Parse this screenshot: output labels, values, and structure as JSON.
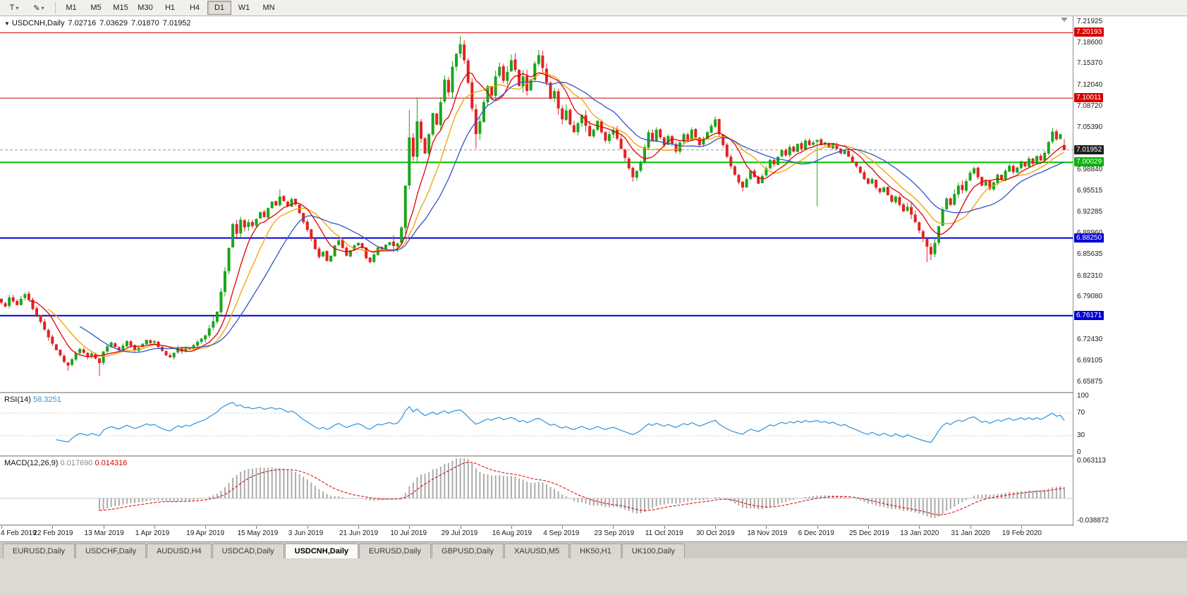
{
  "toolbar": {
    "buttons": [
      {
        "id": "text-tool",
        "label": "T",
        "dropdown": "▾"
      },
      {
        "id": "draw-tool",
        "label": "✎",
        "dropdown": "▾"
      }
    ],
    "timeframes": [
      "M1",
      "M5",
      "M15",
      "M30",
      "H1",
      "H4",
      "D1",
      "W1",
      "MN"
    ],
    "active_timeframe": "D1"
  },
  "chart_header": {
    "collapse_icon": "▼",
    "symbol_label": "USDCNH,Daily",
    "open": "7.02716",
    "high": "7.03629",
    "low": "7.01870",
    "close": "7.01952"
  },
  "price_scale": [
    "7.21925",
    "7.18600",
    "7.15370",
    "7.12040",
    "7.08720",
    "7.05390",
    "7.02060",
    "6.98840",
    "6.95515",
    "6.92285",
    "6.88960",
    "6.85635",
    "6.82310",
    "6.79080",
    "6.75755",
    "6.72430",
    "6.69105",
    "6.65875"
  ],
  "price_tags": [
    {
      "text": "7.20193",
      "price": 7.20193,
      "color": "#D40000"
    },
    {
      "text": "7.10011",
      "price": 7.10011,
      "color": "#D40000"
    },
    {
      "text": "7.01952",
      "price": 7.01952,
      "color": "#1F1F1F"
    },
    {
      "text": "7.00029",
      "price": 7.00029,
      "color": "#00B400"
    },
    {
      "text": "6.88250",
      "price": 6.8825,
      "color": "#0000D4"
    },
    {
      "text": "6.76171",
      "price": 6.76171,
      "color": "#0000D4"
    }
  ],
  "rsi_panel": {
    "name": "RSI(14)",
    "value": "58.3251",
    "scale": [
      {
        "text": "100",
        "v": 100
      },
      {
        "text": "70",
        "v": 70
      },
      {
        "text": "30",
        "v": 30
      },
      {
        "text": "0",
        "v": 0
      }
    ]
  },
  "macd_panel": {
    "name": "MACD(12,26,9)",
    "value_main": "0.017690",
    "value_signal": "0.014316",
    "scale_top": "0.063113",
    "scale_bottom": "-0.038872"
  },
  "date_axis": [
    "4 Feb 2019",
    "22 Feb 2019",
    "13 Mar 2019",
    "1 Apr 2019",
    "19 Apr 2019",
    "15 May 2019",
    "3 Jun 2019",
    "21 Jun 2019",
    "10 Jul 2019",
    "29 Jul 2019",
    "16 Aug 2019",
    "4 Sep 2019",
    "23 Sep 2019",
    "11 Oct 2019",
    "30 Oct 2019",
    "18 Nov 2019",
    "6 Dec 2019",
    "25 Dec 2019",
    "13 Jan 2020",
    "31 Jan 2020",
    "19 Feb 2020"
  ],
  "tabs": {
    "active_index": 4,
    "items": [
      "EURUSD,Daily",
      "USDCHF,Daily",
      "AUDUSD,H4",
      "USDCAD,Daily",
      "USDCNH,Daily",
      "EURUSD,Daily",
      "GBPUSD,Daily",
      "XAUUSD,M5",
      "HK50,H1",
      "UK100,Daily"
    ]
  },
  "chart_data": {
    "type": "candlestick",
    "symbol": "USDCNH",
    "timeframe": "Daily",
    "up_color": "#1CA51C",
    "down_color": "#E22222",
    "price_top": 7.2275,
    "price_bottom": 6.643,
    "first_open": 6.788,
    "tick_every": 13,
    "closes": [
      6.782,
      6.776,
      6.79,
      6.784,
      6.778,
      6.788,
      6.795,
      6.786,
      6.772,
      6.762,
      6.752,
      6.74,
      6.728,
      6.718,
      6.708,
      6.7,
      6.69,
      6.684,
      6.694,
      6.703,
      6.71,
      6.704,
      6.697,
      6.703,
      6.695,
      6.688,
      6.706,
      6.714,
      6.72,
      6.713,
      6.708,
      6.715,
      6.722,
      6.715,
      6.708,
      6.712,
      6.718,
      6.724,
      6.719,
      6.722,
      6.713,
      6.707,
      6.7,
      6.697,
      6.704,
      6.712,
      6.706,
      6.713,
      6.709,
      6.716,
      6.721,
      6.726,
      6.731,
      6.742,
      6.753,
      6.768,
      6.799,
      6.831,
      6.867,
      6.904,
      6.889,
      6.911,
      6.899,
      6.907,
      6.901,
      6.912,
      6.923,
      6.915,
      6.929,
      6.939,
      6.933,
      6.947,
      6.94,
      6.932,
      6.943,
      6.935,
      6.921,
      6.907,
      6.895,
      6.881,
      6.865,
      6.853,
      6.861,
      6.847,
      6.855,
      6.871,
      6.879,
      6.867,
      6.855,
      6.863,
      6.871,
      6.875,
      6.867,
      6.851,
      6.845,
      6.857,
      6.868,
      6.865,
      6.872,
      6.876,
      6.87,
      6.874,
      6.899,
      6.964,
      7.039,
      7.009,
      7.064,
      7.037,
      7.014,
      7.044,
      7.077,
      7.059,
      7.094,
      7.129,
      7.109,
      7.149,
      7.169,
      7.184,
      7.159,
      7.124,
      7.084,
      7.044,
      7.064,
      7.094,
      7.119,
      7.104,
      7.134,
      7.149,
      7.127,
      7.141,
      7.159,
      7.144,
      7.119,
      7.134,
      7.111,
      7.129,
      7.154,
      7.167,
      7.147,
      7.124,
      7.099,
      7.111,
      7.084,
      7.067,
      7.081,
      7.059,
      7.047,
      7.061,
      7.074,
      7.057,
      7.041,
      7.051,
      7.065,
      7.047,
      7.034,
      7.044,
      7.051,
      7.037,
      7.021,
      7.007,
      6.991,
      6.977,
      6.987,
      7.001,
      7.024,
      7.047,
      7.034,
      7.051,
      7.039,
      7.027,
      7.041,
      7.029,
      7.017,
      7.031,
      7.044,
      7.035,
      7.051,
      7.039,
      7.027,
      7.037,
      7.047,
      7.057,
      7.067,
      7.044,
      7.027,
      7.009,
      6.994,
      6.981,
      6.969,
      6.961,
      6.974,
      6.987,
      6.977,
      6.967,
      6.979,
      6.991,
      7.004,
      6.997,
      7.009,
      7.019,
      7.011,
      7.024,
      7.017,
      7.029,
      7.021,
      7.034,
      7.027,
      7.031,
      7.035,
      7.027,
      7.031,
      7.023,
      7.029,
      7.021,
      7.014,
      7.019,
      7.009,
      7.001,
      6.994,
      6.984,
      6.974,
      6.967,
      6.974,
      6.961,
      6.954,
      6.961,
      6.949,
      6.939,
      6.947,
      6.934,
      6.924,
      6.931,
      6.919,
      6.907,
      6.894,
      6.881,
      6.869,
      6.857,
      6.875,
      6.901,
      6.927,
      6.944,
      6.934,
      6.951,
      6.964,
      6.957,
      6.971,
      6.984,
      6.991,
      6.977,
      6.964,
      6.971,
      6.959,
      6.969,
      6.981,
      6.974,
      6.987,
      6.995,
      6.985,
      6.992,
      7.002,
      6.994,
      7.006,
      6.998,
      7.01,
      7.003,
      7.015,
      7.032,
      7.048,
      7.036,
      7.044,
      7.0195
    ],
    "overrides": {
      "17": {
        "l": 6.676
      },
      "25": {
        "l": 6.668
      },
      "71": {
        "h": 6.958
      },
      "104": {
        "h": 7.082
      },
      "106": {
        "h": 7.1
      },
      "117": {
        "h": 7.1965
      },
      "121": {
        "l": 7.022
      },
      "130": {
        "h": 7.168
      },
      "137": {
        "h": 7.175
      },
      "161": {
        "l": 6.97
      },
      "182": {
        "h": 7.072
      },
      "189": {
        "l": 6.955
      },
      "208": {
        "l": 6.932
      },
      "236": {
        "l": 6.845
      },
      "237": {
        "l": 6.848
      },
      "268": {
        "h": 7.054
      },
      "271": {
        "o": 7.02716,
        "h": 7.03629,
        "l": 7.0187,
        "c": 7.01952
      }
    },
    "volatility_zones": [
      {
        "from": 0,
        "to": 12,
        "amp": 0.005
      },
      {
        "from": 52,
        "to": 64,
        "amp": 0.008
      },
      {
        "from": 84,
        "to": 101,
        "amp": 0.0026
      },
      {
        "from": 100,
        "to": 150,
        "amp": 0.01
      },
      {
        "from": 155,
        "to": 168,
        "amp": 0.006
      },
      {
        "from": 230,
        "to": 245,
        "amp": 0.0075
      }
    ],
    "moving_averages": [
      {
        "period": 13,
        "color": "#F0A000"
      },
      {
        "period": 8,
        "color": "#E00000"
      },
      {
        "period": 21,
        "color": "#3353C8"
      }
    ],
    "levels": [
      {
        "price": 7.20193,
        "color": "#D40000",
        "width": 1
      },
      {
        "price": 7.10011,
        "color": "#D40000",
        "width": 1
      },
      {
        "price": 7.00029,
        "color": "#00C400",
        "width": 2
      },
      {
        "price": 6.8825,
        "color": "#0000D4",
        "width": 2
      },
      {
        "price": 6.76171,
        "color": "#0000D4",
        "width": 2
      }
    ],
    "bid_line": {
      "price": 7.01952,
      "color": "#9A9A9A"
    },
    "rsi": {
      "period": 14,
      "color": "#2E93DC",
      "levels": [
        70,
        30
      ],
      "current": 58.3251
    },
    "macd": {
      "fast": 12,
      "slow": 26,
      "signal_period": 9,
      "hist_color": "#ABABAB",
      "signal_color": "#D40000",
      "current_macd": 0.01769,
      "current_signal": 0.014316,
      "scale_max": 0.063113,
      "scale_min": -0.038872
    }
  }
}
